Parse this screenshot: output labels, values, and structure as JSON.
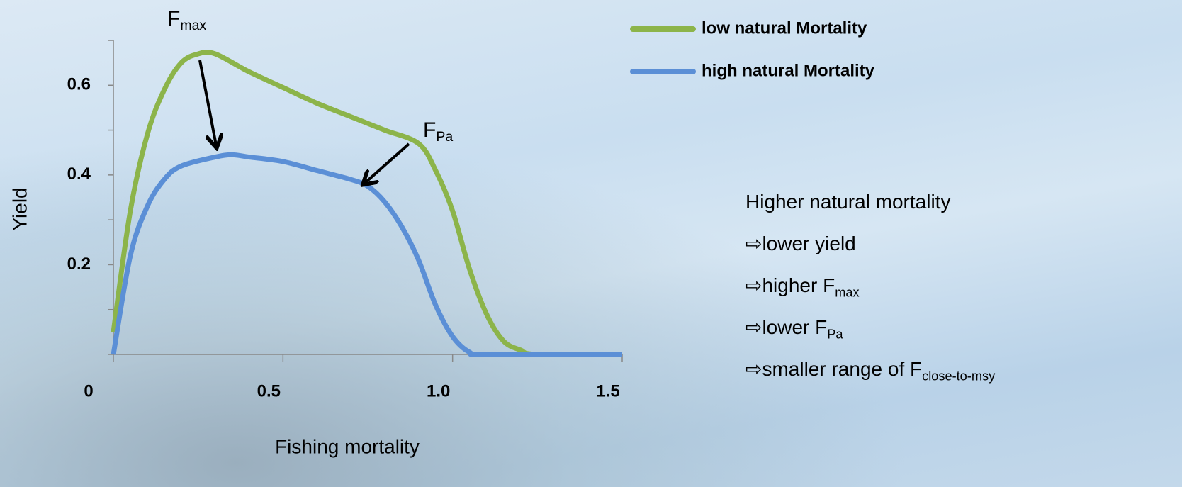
{
  "chart_data": {
    "type": "line",
    "xlabel": "Fishing mortality",
    "ylabel": "Yield",
    "xlim": [
      0,
      1.5
    ],
    "ylim": [
      0,
      0.7
    ],
    "xticks": [
      0,
      0.5,
      {
        "value": 1,
        "label": "1.0"
      },
      1.5
    ],
    "yticks": [
      0.2,
      0.4,
      0.6
    ],
    "yminor_ticks": [
      0,
      0.1,
      0.3,
      0.5,
      0.7
    ],
    "series": [
      {
        "name": "low natural Mortality",
        "color": "#8cb44a",
        "x": [
          0,
          0.05,
          0.1,
          0.15,
          0.2,
          0.25,
          0.3,
          0.4,
          0.5,
          0.6,
          0.7,
          0.8,
          0.9,
          0.95,
          1.0,
          1.05,
          1.1,
          1.15,
          1.2,
          1.25,
          1.5
        ],
        "values": [
          0.05,
          0.32,
          0.49,
          0.59,
          0.65,
          0.67,
          0.67,
          0.63,
          0.595,
          0.56,
          0.53,
          0.5,
          0.47,
          0.41,
          0.32,
          0.19,
          0.09,
          0.03,
          0.01,
          0,
          0
        ]
      },
      {
        "name": "high natural Mortality",
        "color": "#5b8fd6",
        "x": [
          0,
          0.05,
          0.1,
          0.15,
          0.2,
          0.3,
          0.35,
          0.4,
          0.5,
          0.6,
          0.7,
          0.75,
          0.8,
          0.85,
          0.9,
          0.95,
          1.0,
          1.05,
          1.1,
          1.5
        ],
        "values": [
          0,
          0.22,
          0.33,
          0.39,
          0.42,
          0.44,
          0.445,
          0.44,
          0.43,
          0.41,
          0.39,
          0.375,
          0.34,
          0.285,
          0.21,
          0.11,
          0.04,
          0.005,
          0,
          0
        ]
      }
    ],
    "annotations": [
      {
        "text": "F",
        "sub": "max"
      },
      {
        "text": "F",
        "sub": "Pa"
      }
    ],
    "notes": [
      {
        "text": "Higher natural mortality"
      },
      {
        "text": "⇨lower yield"
      },
      {
        "text": "⇨higher F",
        "sub": "max"
      },
      {
        "text": "⇨lower F",
        "sub": "Pa"
      },
      {
        "text": "⇨smaller range of F",
        "sub": "close-to-msy"
      }
    ]
  }
}
